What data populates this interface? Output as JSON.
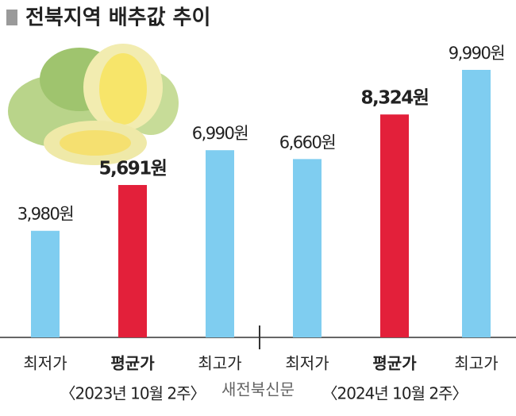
{
  "chart_data": {
    "type": "bar",
    "title": "전북지역 배추값 추이",
    "categories": [
      "최저가",
      "평균가",
      "최고가",
      "최저가",
      "평균가",
      "최고가"
    ],
    "values": [
      3980,
      5691,
      6990,
      6660,
      8324,
      9990
    ],
    "value_labels": [
      "3,980원",
      "5,691원",
      "6,990원",
      "6,660원",
      "8,324원",
      "9,990원"
    ],
    "colors": [
      "#7fcdf0",
      "#e3203a",
      "#7fcdf0",
      "#7fcdf0",
      "#e3203a",
      "#7fcdf0"
    ],
    "groups": [
      "〈2023년 10월 2주〉",
      "〈2024년 10월 2주〉"
    ],
    "watermark": "새전북신문"
  }
}
